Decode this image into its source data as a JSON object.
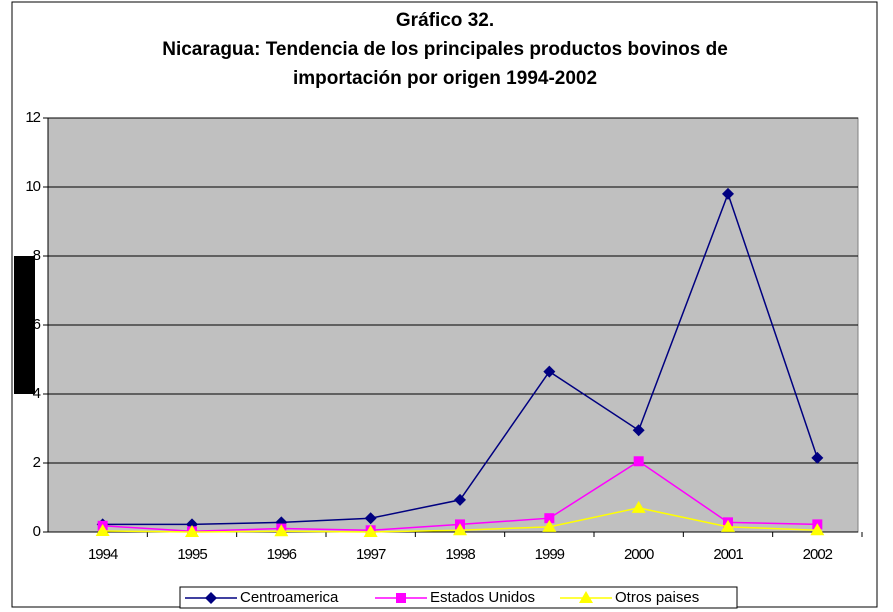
{
  "chart_data": {
    "type": "line",
    "title": [
      "Gráfico 32.",
      "Nicaragua: Tendencia de los principales productos bovinos de",
      "importación por origen 1994-2002"
    ],
    "categories": [
      "1994",
      "1995",
      "1996",
      "1997",
      "1998",
      "1999",
      "2000",
      "2001",
      "2002"
    ],
    "series": [
      {
        "name": "Centroamerica",
        "color": "#000080",
        "marker": "diamond",
        "values": [
          0.22,
          0.22,
          0.28,
          0.4,
          0.93,
          4.65,
          2.95,
          9.8,
          2.15
        ]
      },
      {
        "name": "Estados Unidos",
        "color": "#ff00ff",
        "marker": "square",
        "values": [
          0.18,
          0.02,
          0.1,
          0.05,
          0.22,
          0.4,
          2.05,
          0.28,
          0.22
        ]
      },
      {
        "name": "Otros paises",
        "color": "#ffff00",
        "marker": "triangle",
        "values": [
          0.03,
          0.0,
          0.02,
          0.0,
          0.05,
          0.15,
          0.7,
          0.15,
          0.05
        ]
      }
    ],
    "ylim": [
      0,
      12
    ],
    "yticks": [
      0,
      2,
      4,
      6,
      8,
      10,
      12
    ],
    "grid": true,
    "legend": "bottom"
  }
}
